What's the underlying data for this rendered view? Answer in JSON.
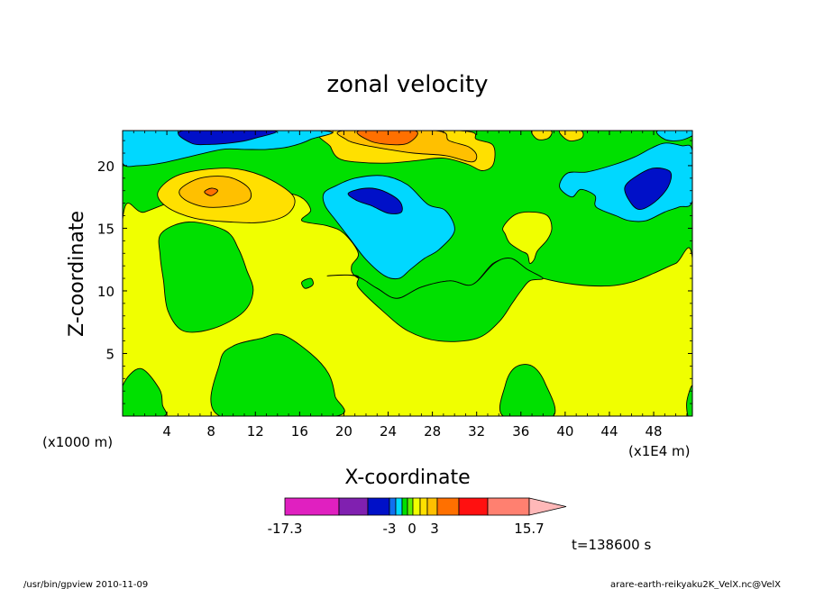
{
  "chart_data": {
    "type": "heatmap",
    "title": "zonal velocity",
    "xlabel": "X-coordinate",
    "ylabel": "Z-coordinate",
    "x_unit_label": "(x1E4 m)",
    "y_unit_label": "(x1000 m)",
    "xlim": [
      0,
      51.5
    ],
    "ylim": [
      0,
      22.8
    ],
    "x_ticks": [
      4,
      8,
      12,
      16,
      20,
      24,
      28,
      32,
      36,
      40,
      44,
      48
    ],
    "y_ticks": [
      5,
      10,
      15,
      20
    ],
    "time_label": "t=138600 s",
    "colorbar": {
      "levels": [
        -17.3,
        -12,
        -6,
        -3,
        -2,
        -1,
        0,
        1,
        2,
        3,
        6,
        9,
        12,
        15.7
      ],
      "colors": [
        "#e020c0",
        "#8020b0",
        "#0010c8",
        "#1070f0",
        "#00d8ff",
        "#00e000",
        "#60f000",
        "#f0ff00",
        "#ffe000",
        "#ffc000",
        "#ff7000",
        "#ff1010",
        "#ff8070",
        "#ffb8b8"
      ],
      "tick_labels": [
        "-17.3",
        "-3",
        "0",
        "3",
        "15.7"
      ]
    },
    "regions": [
      {
        "level": "-1..0",
        "color": "#00e000",
        "points": [
          [
            0,
            22.8
          ],
          [
            51.5,
            22.8
          ],
          [
            51.5,
            0
          ],
          [
            0,
            0
          ]
        ]
      },
      {
        "level": "0..1",
        "color": "#f0ff00",
        "points": [
          [
            0,
            15.7
          ],
          [
            2,
            16.3
          ],
          [
            6,
            17.5
          ],
          [
            11,
            17.8
          ],
          [
            15.5,
            17.7
          ],
          [
            17,
            16.5
          ],
          [
            16.2,
            15.6
          ],
          [
            18.5,
            15.2
          ],
          [
            20,
            14.6
          ],
          [
            21.3,
            13
          ],
          [
            20.7,
            12
          ],
          [
            21,
            11.2
          ],
          [
            23,
            10.2
          ],
          [
            24.8,
            9.4
          ],
          [
            27,
            10.3
          ],
          [
            29.6,
            10.8
          ],
          [
            31.6,
            10.5
          ],
          [
            33.5,
            12.2
          ],
          [
            35,
            12.5
          ],
          [
            36.5,
            11.6
          ],
          [
            38,
            11
          ],
          [
            41,
            10.5
          ],
          [
            44,
            10.4
          ],
          [
            46,
            10.7
          ],
          [
            48,
            11.4
          ],
          [
            50,
            12.2
          ],
          [
            51.5,
            12.6
          ],
          [
            51.5,
            0
          ],
          [
            0,
            0
          ]
        ]
      },
      {
        "level": "-1..0",
        "color": "#00e000",
        "points": [
          [
            3.5,
            14.6
          ],
          [
            6,
            15.5
          ],
          [
            9.3,
            14.8
          ],
          [
            10.5,
            13.3
          ],
          [
            11.2,
            11.7
          ],
          [
            11.8,
            10
          ],
          [
            10.9,
            8.3
          ],
          [
            8.2,
            7
          ],
          [
            5.5,
            6.8
          ],
          [
            4.1,
            8.4
          ],
          [
            3.7,
            10.8
          ],
          [
            3.4,
            12.8
          ]
        ]
      },
      {
        "level": "-1..0",
        "color": "#00e000",
        "points": [
          [
            18.5,
            11.2
          ],
          [
            21.2,
            11.2
          ],
          [
            21.3,
            10.3
          ],
          [
            23.5,
            8.4
          ],
          [
            25.8,
            6.8
          ],
          [
            28.6,
            6
          ],
          [
            32,
            6.2
          ],
          [
            34,
            7.5
          ],
          [
            35.2,
            9
          ],
          [
            36,
            10
          ],
          [
            36.8,
            10.8
          ],
          [
            38,
            11
          ],
          [
            36.6,
            11.7
          ],
          [
            35.1,
            12.6
          ],
          [
            33.6,
            12.2
          ],
          [
            31.6,
            10.5
          ],
          [
            29.6,
            10.8
          ],
          [
            27,
            10.3
          ],
          [
            24.8,
            9.4
          ],
          [
            23,
            10.2
          ],
          [
            21,
            11.2
          ]
        ]
      },
      {
        "level": "-1..0",
        "color": "#00e000",
        "points": [
          [
            8.8,
            4.3
          ],
          [
            10,
            5.6
          ],
          [
            12.5,
            6.2
          ],
          [
            14.4,
            6.5
          ],
          [
            17,
            5
          ],
          [
            18.6,
            3.4
          ],
          [
            19.2,
            1.6
          ],
          [
            19.3,
            0
          ],
          [
            8.8,
            0
          ]
        ]
      },
      {
        "level": "-1..0",
        "color": "#00e000",
        "points": [
          [
            34.4,
            0
          ],
          [
            34.6,
            2.5
          ],
          [
            35.5,
            3.9
          ],
          [
            37,
            4
          ],
          [
            38.2,
            2.6
          ],
          [
            38.9,
            0
          ]
        ]
      },
      {
        "level": "-1..0",
        "color": "#00e000",
        "points": [
          [
            0,
            0
          ],
          [
            0,
            2.4
          ],
          [
            1.6,
            3.8
          ],
          [
            3.3,
            2.2
          ],
          [
            3.6,
            0.9
          ],
          [
            3.7,
            0
          ]
        ]
      },
      {
        "level": "-1..0",
        "color": "#00e000",
        "points": [
          [
            51.5,
            0
          ],
          [
            51.5,
            2.4
          ],
          [
            51,
            1.2
          ],
          [
            51.1,
            0
          ]
        ]
      },
      {
        "level": "-1..0",
        "color": "#00e000",
        "points": [
          [
            16.2,
            10.7
          ],
          [
            17,
            11
          ],
          [
            17.2,
            10.5
          ],
          [
            16.5,
            10.2
          ]
        ]
      },
      {
        "level": "1..2",
        "color": "#ffe000",
        "points": [
          [
            3.2,
            17.9
          ],
          [
            5.2,
            19.3
          ],
          [
            9.4,
            19.8
          ],
          [
            12.6,
            19.2
          ],
          [
            15.4,
            17.6
          ],
          [
            15,
            16.2
          ],
          [
            12.8,
            15.5
          ],
          [
            9.8,
            15.5
          ],
          [
            6.5,
            15.8
          ],
          [
            4,
            16.7
          ]
        ]
      },
      {
        "level": "2..3",
        "color": "#ffc000",
        "points": [
          [
            5.2,
            18.1
          ],
          [
            7,
            19
          ],
          [
            9.5,
            19.1
          ],
          [
            11.3,
            18.3
          ],
          [
            11.5,
            17.3
          ],
          [
            10,
            16.8
          ],
          [
            7.5,
            16.7
          ],
          [
            5.6,
            17.3
          ]
        ]
      },
      {
        "level": "3..6",
        "color": "#ff7000",
        "points": [
          [
            7.4,
            17.9
          ],
          [
            8,
            18.2
          ],
          [
            8.6,
            18
          ],
          [
            8,
            17.6
          ]
        ]
      },
      {
        "level": "1..2",
        "color": "#ffe000",
        "points": [
          [
            18.5,
            22.8
          ],
          [
            18.8,
            21.5
          ],
          [
            19.5,
            20.6
          ],
          [
            21,
            20.3
          ],
          [
            24,
            20.2
          ],
          [
            26.5,
            20.4
          ],
          [
            29,
            20.6
          ],
          [
            31.2,
            20.1
          ],
          [
            32.5,
            19.6
          ],
          [
            33.5,
            20.1
          ],
          [
            33.5,
            21.6
          ],
          [
            32,
            22.1
          ],
          [
            30.5,
            22.8
          ]
        ]
      },
      {
        "level": "2..3",
        "color": "#ffc000",
        "points": [
          [
            20,
            22.8
          ],
          [
            20.2,
            22.1
          ],
          [
            21.5,
            21.7
          ],
          [
            24,
            21.3
          ],
          [
            26.3,
            21
          ],
          [
            29.2,
            20.8
          ],
          [
            31.5,
            20.3
          ],
          [
            32,
            20.8
          ],
          [
            31.3,
            21.5
          ],
          [
            29.5,
            22
          ],
          [
            28.3,
            22.8
          ]
        ]
      },
      {
        "level": "3..6",
        "color": "#ff7000",
        "points": [
          [
            21.4,
            22.8
          ],
          [
            22.3,
            22
          ],
          [
            24,
            21.7
          ],
          [
            25.8,
            21.8
          ],
          [
            26.4,
            22.8
          ]
        ]
      },
      {
        "level": "1..2",
        "color": "#ffe000",
        "points": [
          [
            37,
            22.8
          ],
          [
            37.5,
            22.1
          ],
          [
            38.5,
            22.2
          ],
          [
            38.7,
            22.8
          ]
        ]
      },
      {
        "level": "1..2",
        "color": "#ffe000",
        "points": [
          [
            39.5,
            22.8
          ],
          [
            40.3,
            22
          ],
          [
            41.5,
            22.2
          ],
          [
            41.4,
            22.8
          ]
        ]
      },
      {
        "level": "0..1",
        "color": "#f0ff00",
        "points": [
          [
            34.4,
            15.1
          ],
          [
            35.5,
            16.1
          ],
          [
            37,
            16.3
          ],
          [
            38.4,
            16
          ],
          [
            38.8,
            15
          ],
          [
            38.4,
            14.1
          ],
          [
            37.5,
            13.2
          ],
          [
            37.2,
            12.5
          ],
          [
            36.8,
            12.2
          ],
          [
            36.6,
            12.9
          ],
          [
            36,
            13.2
          ],
          [
            35,
            13.8
          ],
          [
            34.6,
            14.5
          ]
        ]
      },
      {
        "level": "-2..-1",
        "color": "#00d8ff",
        "points": [
          [
            0,
            22.8
          ],
          [
            0,
            20.2
          ],
          [
            1.5,
            20
          ],
          [
            3.5,
            20.2
          ],
          [
            6,
            20.7
          ],
          [
            9,
            21.3
          ],
          [
            11,
            21.3
          ],
          [
            13,
            21.3
          ],
          [
            15,
            21.5
          ],
          [
            17,
            22.1
          ],
          [
            17.8,
            22.8
          ]
        ]
      },
      {
        "level": "-6..-3",
        "color": "#0010c8",
        "points": [
          [
            5.5,
            22.8
          ],
          [
            6.2,
            21.8
          ],
          [
            8,
            21.7
          ],
          [
            10.5,
            21.9
          ],
          [
            12,
            22.2
          ],
          [
            13.6,
            22.8
          ]
        ]
      },
      {
        "level": "-2..-1",
        "color": "#00d8ff",
        "points": [
          [
            18.2,
            17.8
          ],
          [
            19.3,
            18.4
          ],
          [
            21,
            19
          ],
          [
            23.5,
            19.2
          ],
          [
            25.7,
            18.5
          ],
          [
            27.6,
            16.9
          ],
          [
            29.2,
            16.4
          ],
          [
            30,
            14.8
          ],
          [
            28.6,
            13.3
          ],
          [
            27.3,
            12.6
          ],
          [
            26,
            11.7
          ],
          [
            25,
            11
          ],
          [
            23.7,
            11.2
          ],
          [
            22,
            12.5
          ],
          [
            20.6,
            14.1
          ],
          [
            19.3,
            15.6
          ],
          [
            18.3,
            16.8
          ]
        ]
      },
      {
        "level": "-6..-3",
        "color": "#0010c8",
        "points": [
          [
            20.4,
            17.8
          ],
          [
            22,
            18.2
          ],
          [
            23.5,
            18
          ],
          [
            25,
            17.2
          ],
          [
            25.2,
            16.3
          ],
          [
            24,
            16.2
          ],
          [
            22.5,
            16.8
          ],
          [
            21.2,
            17.2
          ]
        ]
      },
      {
        "level": "-2..-1",
        "color": "#00d8ff",
        "points": [
          [
            39.5,
            18.3
          ],
          [
            40.2,
            19.4
          ],
          [
            42,
            19.5
          ],
          [
            44.5,
            20.1
          ],
          [
            46.3,
            20.7
          ],
          [
            47.8,
            21.4
          ],
          [
            49,
            21.8
          ],
          [
            50.5,
            21.6
          ],
          [
            51.5,
            21.2
          ],
          [
            51.5,
            17.2
          ],
          [
            50.3,
            16.7
          ],
          [
            49,
            16.3
          ],
          [
            47.3,
            15.6
          ],
          [
            45.8,
            15.6
          ],
          [
            44.6,
            16
          ],
          [
            42.8,
            16.7
          ],
          [
            42.7,
            17.6
          ],
          [
            41.4,
            18.1
          ],
          [
            40.6,
            17.5
          ]
        ]
      },
      {
        "level": "-6..-3",
        "color": "#0010c8",
        "points": [
          [
            45.4,
            18.3
          ],
          [
            46.5,
            19.2
          ],
          [
            48,
            19.8
          ],
          [
            49.5,
            19.5
          ],
          [
            49.3,
            18.3
          ],
          [
            48.1,
            17.1
          ],
          [
            46.7,
            16.5
          ],
          [
            45.8,
            17.2
          ]
        ]
      },
      {
        "level": "-2..-1",
        "color": "#00d8ff",
        "points": [
          [
            48.4,
            22.8
          ],
          [
            49,
            22.1
          ],
          [
            50.3,
            22
          ],
          [
            51.5,
            22.4
          ],
          [
            51.5,
            22.8
          ]
        ]
      }
    ]
  },
  "footer": {
    "left": "/usr/bin/gpview   2010-11-09",
    "right": "arare-earth-reikyaku2K_VelX.nc@VelX"
  }
}
